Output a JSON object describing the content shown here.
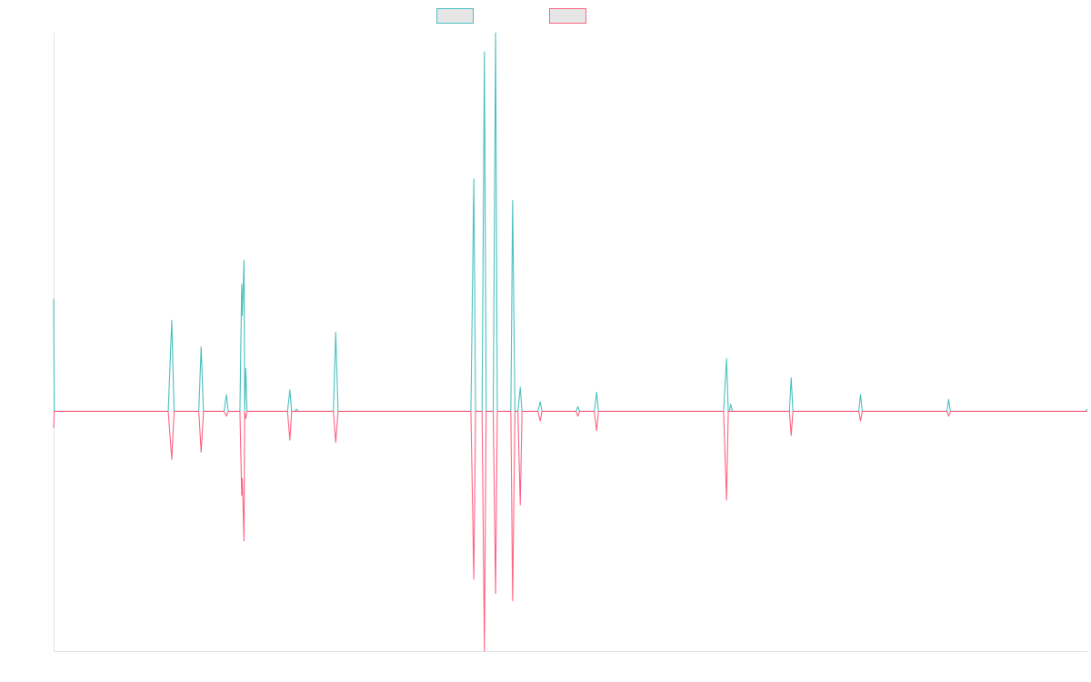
{
  "chart_data": {
    "type": "line",
    "title": "",
    "xlabel": "",
    "ylabel": "",
    "grid": false,
    "legend_position": "top-center",
    "ylim": [
      -100,
      158
    ],
    "series": [
      {
        "color": "#4bc0c0",
        "fill": "#e6e6e6",
        "points": [
          [
            0,
            47
          ],
          [
            1,
            0
          ],
          [
            195,
            0
          ],
          [
            201,
            38
          ],
          [
            205,
            0
          ],
          [
            247,
            0
          ],
          [
            251,
            27
          ],
          [
            255,
            0
          ],
          [
            290,
            0
          ],
          [
            294,
            7
          ],
          [
            297,
            0
          ],
          [
            317,
            0
          ],
          [
            320,
            53
          ],
          [
            321,
            40
          ],
          [
            324,
            63
          ],
          [
            325,
            0
          ],
          [
            327,
            18
          ],
          [
            329,
            0
          ],
          [
            398,
            0
          ],
          [
            402,
            9
          ],
          [
            405,
            0
          ],
          [
            411,
            0
          ],
          [
            413,
            1
          ],
          [
            416,
            0
          ],
          [
            476,
            0
          ],
          [
            480,
            33
          ],
          [
            484,
            0
          ],
          [
            710,
            0
          ],
          [
            715,
            97
          ],
          [
            718,
            0
          ],
          [
            729,
            0
          ],
          [
            733,
            150
          ],
          [
            736,
            0
          ],
          [
            748,
            0
          ],
          [
            752,
            158
          ],
          [
            755,
            0
          ],
          [
            778,
            0
          ],
          [
            781,
            88
          ],
          [
            785,
            0
          ],
          [
            790,
            0
          ],
          [
            794,
            10
          ],
          [
            797,
            0
          ],
          [
            824,
            0
          ],
          [
            828,
            4
          ],
          [
            831,
            0
          ],
          [
            889,
            0
          ],
          [
            892,
            2
          ],
          [
            895,
            0
          ],
          [
            920,
            0
          ],
          [
            924,
            8
          ],
          [
            927,
            0
          ],
          [
            1140,
            0
          ],
          [
            1145,
            22
          ],
          [
            1148,
            0
          ],
          [
            1150,
            0
          ],
          [
            1152,
            3
          ],
          [
            1155,
            0
          ],
          [
            1252,
            0
          ],
          [
            1255,
            14
          ],
          [
            1258,
            0
          ],
          [
            1370,
            0
          ],
          [
            1373,
            7
          ],
          [
            1376,
            0
          ],
          [
            1520,
            0
          ],
          [
            1523,
            5
          ],
          [
            1526,
            0
          ],
          [
            1756,
            0
          ],
          [
            1759,
            1
          ]
        ]
      },
      {
        "color": "#ff6384",
        "fill": "#e6e6e6",
        "points": [
          [
            0,
            -7
          ],
          [
            1,
            0
          ],
          [
            195,
            0
          ],
          [
            201,
            -20
          ],
          [
            205,
            0
          ],
          [
            247,
            0
          ],
          [
            251,
            -17
          ],
          [
            255,
            0
          ],
          [
            290,
            0
          ],
          [
            294,
            -2
          ],
          [
            297,
            0
          ],
          [
            317,
            0
          ],
          [
            320,
            -35
          ],
          [
            321,
            -28
          ],
          [
            324,
            -54
          ],
          [
            325,
            0
          ],
          [
            327,
            -3
          ],
          [
            329,
            0
          ],
          [
            398,
            0
          ],
          [
            402,
            -12
          ],
          [
            405,
            0
          ],
          [
            476,
            0
          ],
          [
            480,
            -13
          ],
          [
            484,
            0
          ],
          [
            710,
            0
          ],
          [
            715,
            -70
          ],
          [
            718,
            0
          ],
          [
            729,
            0
          ],
          [
            733,
            -100
          ],
          [
            736,
            0
          ],
          [
            748,
            0
          ],
          [
            752,
            -76
          ],
          [
            755,
            0
          ],
          [
            778,
            0
          ],
          [
            781,
            -79
          ],
          [
            785,
            0
          ],
          [
            790,
            0
          ],
          [
            794,
            -39
          ],
          [
            797,
            0
          ],
          [
            824,
            0
          ],
          [
            828,
            -4
          ],
          [
            831,
            0
          ],
          [
            889,
            0
          ],
          [
            892,
            -2
          ],
          [
            895,
            0
          ],
          [
            920,
            0
          ],
          [
            924,
            -8
          ],
          [
            927,
            0
          ],
          [
            1140,
            0
          ],
          [
            1145,
            -37
          ],
          [
            1148,
            0
          ],
          [
            1252,
            0
          ],
          [
            1255,
            -10
          ],
          [
            1258,
            0
          ],
          [
            1370,
            0
          ],
          [
            1373,
            -4
          ],
          [
            1376,
            0
          ],
          [
            1520,
            0
          ],
          [
            1523,
            -2
          ],
          [
            1526,
            0
          ],
          [
            1756,
            0
          ],
          [
            1759,
            0
          ]
        ]
      }
    ]
  }
}
